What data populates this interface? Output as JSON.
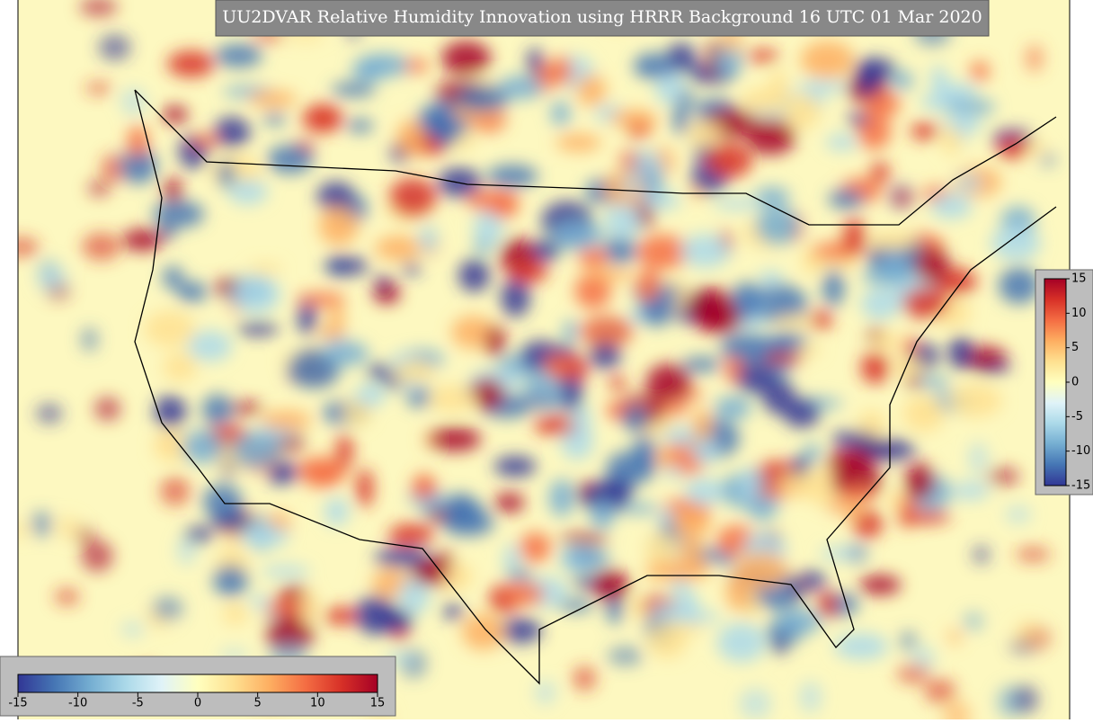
{
  "chart_data": {
    "type": "map",
    "title": "UU2DVAR Relative Humidity Innovation using HRRR Background 16 UTC 01 Mar 2020",
    "colors": [
      "#313695",
      "#4575b4",
      "#74add1",
      "#abd9e9",
      "#e0f3f8",
      "#ffffbf",
      "#fee090",
      "#fdae61",
      "#f46d43",
      "#d73027",
      "#a50026"
    ],
    "horizontal_colorbar": {
      "range": [
        -15,
        15
      ],
      "ticks": [
        -15,
        -10,
        -5,
        0,
        5,
        10,
        15
      ]
    },
    "vertical_colorbar": {
      "range": [
        -15,
        15
      ],
      "ticks": [
        15,
        10,
        5,
        0,
        -5,
        -10,
        -15
      ]
    }
  }
}
